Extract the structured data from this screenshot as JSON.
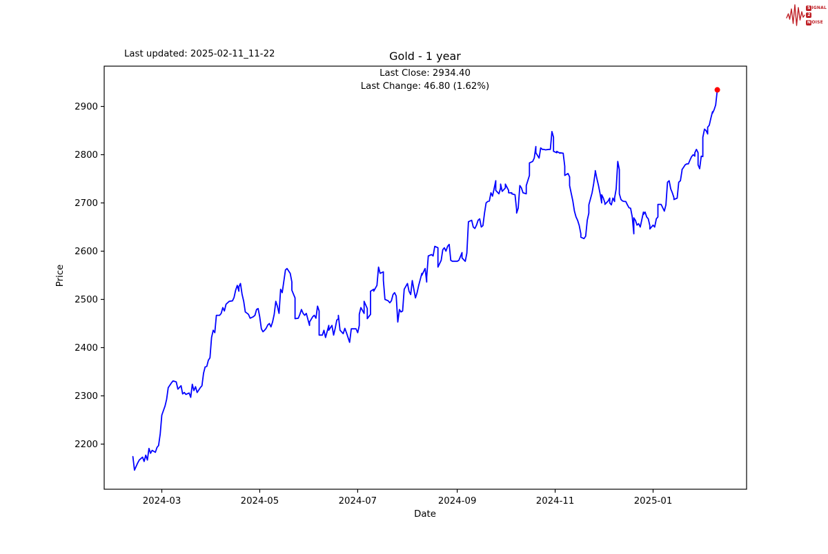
{
  "header": {
    "last_updated": "Last updated: 2025-02-11_11-22"
  },
  "logo": {
    "row1_badge": "S",
    "row1_rest": "IGNAL",
    "row2_badge": "2",
    "row3_badge": "N",
    "row3_rest": "OISE",
    "color": "#bf2026"
  },
  "chart": {
    "title": "Gold - 1 year",
    "annotation_line1": "Last Close: 2934.40",
    "annotation_line2": "Last Change: 46.80 (1.62%)",
    "xlabel": "Date",
    "ylabel": "Price",
    "line_color": "#0000ff",
    "marker_color": "#ff0000",
    "axis_color": "#000000"
  },
  "chart_data": {
    "type": "line",
    "title": "Gold - 1 year",
    "xlabel": "Date",
    "ylabel": "Price",
    "legend": "none",
    "grid": false,
    "last_close": 2934.4,
    "last_change": "46.80 (1.62%)",
    "x_unit": "days since 2024-02-12",
    "x_range_days": [
      -18,
      382
    ],
    "ylim": [
      2110,
      2990
    ],
    "x_ticks": [
      {
        "label": "2024-03",
        "day": 18
      },
      {
        "label": "2024-05",
        "day": 79
      },
      {
        "label": "2024-07",
        "day": 140
      },
      {
        "label": "2024-09",
        "day": 202
      },
      {
        "label": "2024-11",
        "day": 263
      },
      {
        "label": "2025-01",
        "day": 324
      }
    ],
    "y_ticks": [
      2200,
      2300,
      2400,
      2500,
      2600,
      2700,
      2800,
      2900
    ],
    "points": [
      [
        0,
        2174
      ],
      [
        1,
        2146
      ],
      [
        3,
        2161
      ],
      [
        4,
        2167
      ],
      [
        6,
        2173
      ],
      [
        7,
        2164
      ],
      [
        8,
        2177
      ],
      [
        9,
        2167
      ],
      [
        10,
        2191
      ],
      [
        11,
        2181
      ],
      [
        12,
        2187
      ],
      [
        14,
        2183
      ],
      [
        15,
        2193
      ],
      [
        16,
        2197
      ],
      [
        17,
        2221
      ],
      [
        18,
        2260
      ],
      [
        20,
        2279
      ],
      [
        21,
        2293
      ],
      [
        22,
        2317
      ],
      [
        24,
        2327
      ],
      [
        25,
        2331
      ],
      [
        26,
        2330
      ],
      [
        27,
        2329
      ],
      [
        28,
        2314
      ],
      [
        30,
        2321
      ],
      [
        31,
        2304
      ],
      [
        32,
        2307
      ],
      [
        33,
        2303
      ],
      [
        35,
        2306
      ],
      [
        36,
        2297
      ],
      [
        37,
        2324
      ],
      [
        38,
        2311
      ],
      [
        39,
        2319
      ],
      [
        40,
        2307
      ],
      [
        42,
        2317
      ],
      [
        43,
        2321
      ],
      [
        44,
        2347
      ],
      [
        45,
        2360
      ],
      [
        46,
        2361
      ],
      [
        47,
        2374
      ],
      [
        48,
        2379
      ],
      [
        49,
        2421
      ],
      [
        50,
        2436
      ],
      [
        51,
        2431
      ],
      [
        52,
        2467
      ],
      [
        54,
        2467
      ],
      [
        55,
        2471
      ],
      [
        56,
        2483
      ],
      [
        57,
        2476
      ],
      [
        58,
        2490
      ],
      [
        60,
        2496
      ],
      [
        62,
        2497
      ],
      [
        63,
        2504
      ],
      [
        64,
        2519
      ],
      [
        65,
        2529
      ],
      [
        66,
        2517
      ],
      [
        66,
        2526
      ],
      [
        67,
        2533
      ],
      [
        68,
        2511
      ],
      [
        69,
        2496
      ],
      [
        70,
        2474
      ],
      [
        72,
        2469
      ],
      [
        73,
        2461
      ],
      [
        75,
        2464
      ],
      [
        76,
        2467
      ],
      [
        77,
        2479
      ],
      [
        78,
        2481
      ],
      [
        79,
        2464
      ],
      [
        80,
        2439
      ],
      [
        81,
        2433
      ],
      [
        82,
        2436
      ],
      [
        83,
        2440
      ],
      [
        84,
        2447
      ],
      [
        85,
        2450
      ],
      [
        86,
        2443
      ],
      [
        87,
        2453
      ],
      [
        88,
        2469
      ],
      [
        89,
        2496
      ],
      [
        90,
        2486
      ],
      [
        91,
        2471
      ],
      [
        92,
        2521
      ],
      [
        93,
        2514
      ],
      [
        95,
        2561
      ],
      [
        96,
        2564
      ],
      [
        98,
        2554
      ],
      [
        99,
        2536
      ],
      [
        99,
        2519
      ],
      [
        101,
        2503
      ],
      [
        101,
        2460
      ],
      [
        103,
        2461
      ],
      [
        104,
        2469
      ],
      [
        105,
        2479
      ],
      [
        106,
        2471
      ],
      [
        107,
        2467
      ],
      [
        108,
        2471
      ],
      [
        110,
        2446
      ],
      [
        110,
        2453
      ],
      [
        112,
        2464
      ],
      [
        113,
        2467
      ],
      [
        114,
        2461
      ],
      [
        115,
        2486
      ],
      [
        116,
        2476
      ],
      [
        116,
        2426
      ],
      [
        118,
        2426
      ],
      [
        119,
        2436
      ],
      [
        120,
        2421
      ],
      [
        122,
        2446
      ],
      [
        122,
        2436
      ],
      [
        124,
        2446
      ],
      [
        125,
        2426
      ],
      [
        126,
        2440
      ],
      [
        127,
        2457
      ],
      [
        128,
        2460
      ],
      [
        128,
        2467
      ],
      [
        129,
        2436
      ],
      [
        131,
        2429
      ],
      [
        132,
        2440
      ],
      [
        133,
        2431
      ],
      [
        135,
        2411
      ],
      [
        136,
        2439
      ],
      [
        137,
        2439
      ],
      [
        139,
        2439
      ],
      [
        140,
        2431
      ],
      [
        141,
        2446
      ],
      [
        141,
        2469
      ],
      [
        142,
        2483
      ],
      [
        144,
        2471
      ],
      [
        144,
        2496
      ],
      [
        146,
        2481
      ],
      [
        146,
        2460
      ],
      [
        148,
        2469
      ],
      [
        148,
        2517
      ],
      [
        150,
        2521
      ],
      [
        150,
        2517
      ],
      [
        152,
        2529
      ],
      [
        153,
        2567
      ],
      [
        154,
        2554
      ],
      [
        156,
        2557
      ],
      [
        156,
        2540
      ],
      [
        157,
        2500
      ],
      [
        159,
        2497
      ],
      [
        160,
        2493
      ],
      [
        161,
        2497
      ],
      [
        162,
        2510
      ],
      [
        163,
        2514
      ],
      [
        164,
        2507
      ],
      [
        165,
        2453
      ],
      [
        166,
        2479
      ],
      [
        167,
        2474
      ],
      [
        168,
        2476
      ],
      [
        169,
        2521
      ],
      [
        171,
        2533
      ],
      [
        172,
        2517
      ],
      [
        173,
        2510
      ],
      [
        174,
        2539
      ],
      [
        176,
        2503
      ],
      [
        177,
        2514
      ],
      [
        178,
        2529
      ],
      [
        180,
        2554
      ],
      [
        180,
        2550
      ],
      [
        182,
        2564
      ],
      [
        183,
        2536
      ],
      [
        183,
        2546
      ],
      [
        184,
        2590
      ],
      [
        186,
        2593
      ],
      [
        187,
        2590
      ],
      [
        188,
        2610
      ],
      [
        190,
        2607
      ],
      [
        190,
        2567
      ],
      [
        192,
        2581
      ],
      [
        193,
        2603
      ],
      [
        194,
        2607
      ],
      [
        195,
        2600
      ],
      [
        196,
        2610
      ],
      [
        197,
        2614
      ],
      [
        198,
        2581
      ],
      [
        199,
        2579
      ],
      [
        201,
        2579
      ],
      [
        202,
        2579
      ],
      [
        203,
        2581
      ],
      [
        205,
        2597
      ],
      [
        205,
        2586
      ],
      [
        207,
        2579
      ],
      [
        208,
        2596
      ],
      [
        209,
        2661
      ],
      [
        211,
        2664
      ],
      [
        212,
        2650
      ],
      [
        213,
        2647
      ],
      [
        214,
        2654
      ],
      [
        215,
        2664
      ],
      [
        216,
        2667
      ],
      [
        217,
        2650
      ],
      [
        218,
        2653
      ],
      [
        219,
        2679
      ],
      [
        220,
        2700
      ],
      [
        221,
        2703
      ],
      [
        222,
        2704
      ],
      [
        223,
        2721
      ],
      [
        224,
        2714
      ],
      [
        226,
        2746
      ],
      [
        226,
        2726
      ],
      [
        228,
        2719
      ],
      [
        229,
        2731
      ],
      [
        229,
        2739
      ],
      [
        230,
        2724
      ],
      [
        232,
        2731
      ],
      [
        232,
        2739
      ],
      [
        234,
        2726
      ],
      [
        234,
        2721
      ],
      [
        236,
        2721
      ],
      [
        236,
        2719
      ],
      [
        238,
        2717
      ],
      [
        239,
        2686
      ],
      [
        239,
        2679
      ],
      [
        240,
        2689
      ],
      [
        241,
        2736
      ],
      [
        242,
        2731
      ],
      [
        243,
        2721
      ],
      [
        245,
        2719
      ],
      [
        245,
        2736
      ],
      [
        247,
        2757
      ],
      [
        247,
        2783
      ],
      [
        249,
        2786
      ],
      [
        250,
        2793
      ],
      [
        251,
        2817
      ],
      [
        251,
        2804
      ],
      [
        253,
        2793
      ],
      [
        254,
        2814
      ],
      [
        255,
        2811
      ],
      [
        256,
        2811
      ],
      [
        257,
        2810
      ],
      [
        259,
        2811
      ],
      [
        260,
        2811
      ],
      [
        261,
        2848
      ],
      [
        262,
        2836
      ],
      [
        262,
        2807
      ],
      [
        264,
        2804
      ],
      [
        264,
        2807
      ],
      [
        266,
        2803
      ],
      [
        266,
        2804
      ],
      [
        268,
        2803
      ],
      [
        269,
        2776
      ],
      [
        269,
        2757
      ],
      [
        271,
        2761
      ],
      [
        272,
        2754
      ],
      [
        272,
        2736
      ],
      [
        274,
        2704
      ],
      [
        275,
        2683
      ],
      [
        276,
        2671
      ],
      [
        277,
        2664
      ],
      [
        278,
        2653
      ],
      [
        279,
        2636
      ],
      [
        279,
        2629
      ],
      [
        281,
        2626
      ],
      [
        282,
        2631
      ],
      [
        283,
        2664
      ],
      [
        284,
        2679
      ],
      [
        284,
        2696
      ],
      [
        286,
        2721
      ],
      [
        287,
        2740
      ],
      [
        288,
        2764
      ],
      [
        288,
        2767
      ],
      [
        289,
        2750
      ],
      [
        290,
        2736
      ],
      [
        291,
        2719
      ],
      [
        292,
        2700
      ],
      [
        292,
        2717
      ],
      [
        293,
        2710
      ],
      [
        294,
        2700
      ],
      [
        294,
        2697
      ],
      [
        296,
        2704
      ],
      [
        297,
        2710
      ],
      [
        297,
        2700
      ],
      [
        298,
        2696
      ],
      [
        299,
        2710
      ],
      [
        300,
        2703
      ],
      [
        300,
        2710
      ],
      [
        301,
        2729
      ],
      [
        302,
        2786
      ],
      [
        303,
        2769
      ],
      [
        303,
        2719
      ],
      [
        304,
        2707
      ],
      [
        305,
        2704
      ],
      [
        306,
        2703
      ],
      [
        307,
        2703
      ],
      [
        308,
        2696
      ],
      [
        309,
        2690
      ],
      [
        310,
        2689
      ],
      [
        311,
        2671
      ],
      [
        312,
        2636
      ],
      [
        312,
        2669
      ],
      [
        313,
        2664
      ],
      [
        314,
        2654
      ],
      [
        315,
        2657
      ],
      [
        316,
        2650
      ],
      [
        318,
        2681
      ],
      [
        318,
        2676
      ],
      [
        319,
        2681
      ],
      [
        320,
        2671
      ],
      [
        321,
        2667
      ],
      [
        322,
        2653
      ],
      [
        322,
        2646
      ],
      [
        324,
        2654
      ],
      [
        325,
        2650
      ],
      [
        326,
        2667
      ],
      [
        327,
        2671
      ],
      [
        327,
        2697
      ],
      [
        329,
        2697
      ],
      [
        330,
        2690
      ],
      [
        331,
        2683
      ],
      [
        332,
        2696
      ],
      [
        333,
        2743
      ],
      [
        334,
        2746
      ],
      [
        335,
        2729
      ],
      [
        336,
        2721
      ],
      [
        337,
        2711
      ],
      [
        337,
        2707
      ],
      [
        339,
        2710
      ],
      [
        340,
        2743
      ],
      [
        341,
        2746
      ],
      [
        342,
        2767
      ],
      [
        342,
        2769
      ],
      [
        344,
        2779
      ],
      [
        345,
        2781
      ],
      [
        346,
        2781
      ],
      [
        347,
        2789
      ],
      [
        348,
        2796
      ],
      [
        349,
        2800
      ],
      [
        350,
        2797
      ],
      [
        350,
        2804
      ],
      [
        351,
        2811
      ],
      [
        352,
        2804
      ],
      [
        352,
        2779
      ],
      [
        353,
        2771
      ],
      [
        354,
        2797
      ],
      [
        355,
        2796
      ],
      [
        355,
        2836
      ],
      [
        356,
        2853
      ],
      [
        357,
        2850
      ],
      [
        358,
        2843
      ],
      [
        358,
        2857
      ],
      [
        359,
        2861
      ],
      [
        360,
        2876
      ],
      [
        361,
        2889
      ],
      [
        361,
        2886
      ],
      [
        362,
        2893
      ],
      [
        363,
        2903
      ],
      [
        364,
        2934.4
      ]
    ]
  }
}
